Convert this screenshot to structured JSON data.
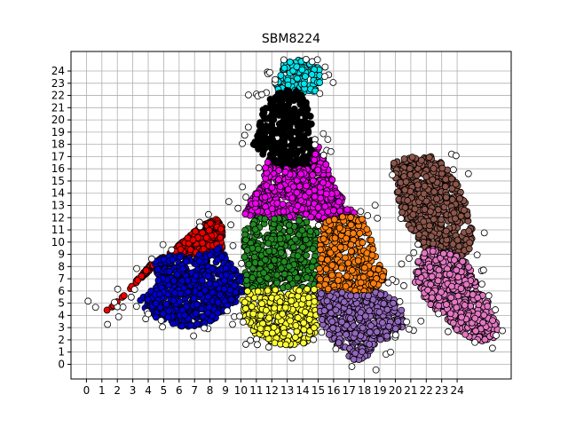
{
  "chart_data": {
    "type": "scatter",
    "title": "SBM8224",
    "xlabel": "",
    "ylabel": "",
    "xlim": [
      -1,
      27.5
    ],
    "ylim": [
      -1.2,
      25.6
    ],
    "x_ticks": [
      0,
      1,
      2,
      3,
      4,
      5,
      6,
      7,
      8,
      9,
      10,
      11,
      12,
      13,
      14,
      15,
      16,
      17,
      18,
      19,
      20,
      21,
      22,
      23,
      24
    ],
    "y_ticks": [
      0,
      1,
      2,
      3,
      4,
      5,
      6,
      7,
      8,
      9,
      10,
      11,
      12,
      13,
      14,
      15,
      16,
      17,
      18,
      19,
      20,
      21,
      22,
      23,
      24
    ],
    "grid": true,
    "legend": "none",
    "marker_edge_color": "#000000",
    "clusters": [
      {
        "color": "#00e5ee",
        "region": [
          [
            12.3,
            22.0
          ],
          [
            14.9,
            22.2
          ],
          [
            15.3,
            23.8
          ],
          [
            14.9,
            24.5
          ],
          [
            13.8,
            24.9
          ],
          [
            12.8,
            24.7
          ],
          [
            12.2,
            23.0
          ]
        ]
      },
      {
        "color": "#000000",
        "region": [
          [
            10.8,
            18.0
          ],
          [
            12.3,
            16.0
          ],
          [
            14.3,
            16.0
          ],
          [
            14.7,
            17.5
          ],
          [
            14.5,
            21.5
          ],
          [
            13.3,
            22.6
          ],
          [
            12.2,
            22.4
          ],
          [
            11.5,
            21.3
          ],
          [
            11.2,
            19.5
          ]
        ]
      },
      {
        "color": "#ee00ee",
        "region": [
          [
            11.6,
            16.8
          ],
          [
            12.3,
            16.0
          ],
          [
            14.4,
            16.0
          ],
          [
            14.9,
            18.2
          ],
          [
            15.7,
            15.8
          ],
          [
            16.2,
            14.2
          ],
          [
            17.2,
            12.6
          ],
          [
            17.7,
            11.8
          ],
          [
            15.2,
            11.8
          ],
          [
            14.7,
            12.0
          ],
          [
            11.2,
            12.0
          ],
          [
            10.2,
            12.3
          ],
          [
            10.7,
            13.5
          ],
          [
            11.5,
            15.0
          ]
        ]
      },
      {
        "color": "#ee0000",
        "region": [
          [
            1.2,
            4.3
          ],
          [
            2.3,
            5.5
          ],
          [
            3.5,
            7.0
          ],
          [
            4.7,
            8.4
          ],
          [
            6.2,
            10.0
          ],
          [
            7.4,
            11.3
          ],
          [
            8.4,
            11.9
          ],
          [
            8.8,
            11.3
          ],
          [
            8.8,
            9.4
          ],
          [
            7.6,
            9.0
          ],
          [
            5.3,
            9.0
          ],
          [
            4.3,
            8.4
          ],
          [
            3.2,
            6.8
          ],
          [
            2.3,
            5.4
          ],
          [
            1.6,
            4.6
          ]
        ]
      },
      {
        "color": "#0000cd",
        "region": [
          [
            3.4,
            5.2
          ],
          [
            4.2,
            6.2
          ],
          [
            4.5,
            8.6
          ],
          [
            5.6,
            9.0
          ],
          [
            7.6,
            9.0
          ],
          [
            8.7,
            9.6
          ],
          [
            9.3,
            8.3
          ],
          [
            10.0,
            7.5
          ],
          [
            10.3,
            6.0
          ],
          [
            9.6,
            5.0
          ],
          [
            8.8,
            4.0
          ],
          [
            7.6,
            3.3
          ],
          [
            6.5,
            3.0
          ],
          [
            5.4,
            3.4
          ],
          [
            4.3,
            3.8
          ]
        ]
      },
      {
        "color": "#228b22",
        "region": [
          [
            10.2,
            7.3
          ],
          [
            10.2,
            11.0
          ],
          [
            11.1,
            12.0
          ],
          [
            14.0,
            12.0
          ],
          [
            14.9,
            11.2
          ],
          [
            15.0,
            6.2
          ],
          [
            11.8,
            6.2
          ],
          [
            10.2,
            6.2
          ]
        ]
      },
      {
        "color": "#ff7f0e",
        "region": [
          [
            15.0,
            6.2
          ],
          [
            15.2,
            11.5
          ],
          [
            16.5,
            12.2
          ],
          [
            17.8,
            12.0
          ],
          [
            18.4,
            10.5
          ],
          [
            18.9,
            8.5
          ],
          [
            19.4,
            7.3
          ],
          [
            18.8,
            6.0
          ],
          [
            17.5,
            5.6
          ],
          [
            16.2,
            5.8
          ],
          [
            15.0,
            6.0
          ]
        ]
      },
      {
        "color": "#ffff33",
        "region": [
          [
            10.0,
            5.0
          ],
          [
            10.4,
            6.0
          ],
          [
            11.5,
            6.2
          ],
          [
            15.0,
            6.2
          ],
          [
            15.2,
            4.5
          ],
          [
            14.8,
            2.5
          ],
          [
            14.0,
            1.5
          ],
          [
            13.0,
            1.5
          ],
          [
            12.0,
            1.8
          ],
          [
            11.0,
            2.4
          ],
          [
            10.3,
            3.5
          ]
        ]
      },
      {
        "color": "#9467bd",
        "region": [
          [
            15.0,
            5.9
          ],
          [
            16.2,
            6.0
          ],
          [
            17.5,
            5.6
          ],
          [
            18.8,
            6.0
          ],
          [
            19.8,
            5.5
          ],
          [
            20.6,
            4.2
          ],
          [
            20.5,
            3.0
          ],
          [
            19.7,
            2.3
          ],
          [
            18.6,
            1.4
          ],
          [
            18.0,
            0.3
          ],
          [
            17.3,
            0.3
          ],
          [
            16.5,
            1.2
          ],
          [
            15.8,
            2.0
          ],
          [
            15.2,
            3.5
          ]
        ]
      },
      {
        "color": "#8c564b",
        "region": [
          [
            19.8,
            16.6
          ],
          [
            20.0,
            15.5
          ],
          [
            20.2,
            13.0
          ],
          [
            20.8,
            11.5
          ],
          [
            21.4,
            10.0
          ],
          [
            22.3,
            9.0
          ],
          [
            23.8,
            8.6
          ],
          [
            24.9,
            9.3
          ],
          [
            25.0,
            11.0
          ],
          [
            24.6,
            13.0
          ],
          [
            24.0,
            14.8
          ],
          [
            23.2,
            16.3
          ],
          [
            22.3,
            17.0
          ],
          [
            21.0,
            17.0
          ]
        ]
      },
      {
        "color": "#e377c2",
        "region": [
          [
            21.2,
            6.8
          ],
          [
            21.5,
            8.8
          ],
          [
            22.3,
            9.6
          ],
          [
            23.8,
            9.1
          ],
          [
            24.7,
            8.2
          ],
          [
            25.3,
            6.5
          ],
          [
            26.3,
            4.5
          ],
          [
            26.7,
            3.0
          ],
          [
            26.2,
            1.8
          ],
          [
            25.3,
            1.9
          ],
          [
            24.0,
            2.8
          ],
          [
            23.2,
            3.9
          ],
          [
            22.3,
            4.8
          ],
          [
            21.7,
            5.5
          ]
        ]
      }
    ]
  }
}
